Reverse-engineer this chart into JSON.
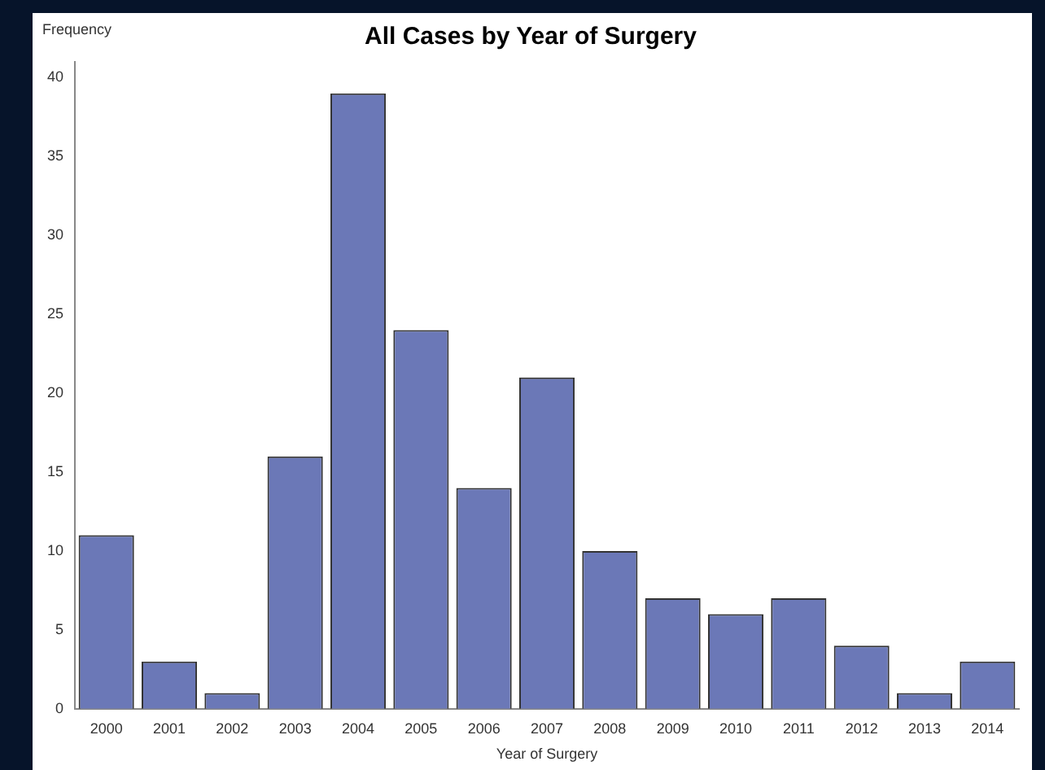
{
  "chart_data": {
    "type": "bar",
    "title": "All Cases by Year of Surgery",
    "xlabel": "Year of Surgery",
    "ylabel": "Frequency",
    "categories": [
      "2000",
      "2001",
      "2002",
      "2003",
      "2004",
      "2005",
      "2006",
      "2007",
      "2008",
      "2009",
      "2010",
      "2011",
      "2012",
      "2013",
      "2014"
    ],
    "values": [
      11,
      3,
      1,
      16,
      39,
      24,
      14,
      21,
      10,
      7,
      6,
      7,
      4,
      1,
      3
    ],
    "color": "#6b78b7",
    "ylim": [
      0,
      41
    ],
    "yticks": [
      0,
      5,
      10,
      15,
      20,
      25,
      30,
      35,
      40
    ],
    "grid": false,
    "legend": false
  }
}
